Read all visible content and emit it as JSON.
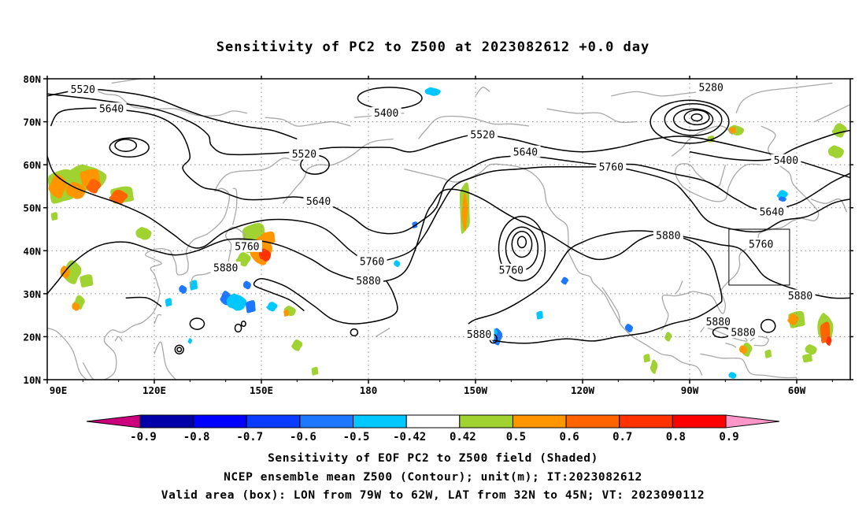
{
  "title": "Sensitivity of PC2 to Z500 at 2023082612 +0.0 day",
  "captions": {
    "line1": "Sensitivity of EOF PC2 to Z500 field (Shaded)",
    "line2": "NCEP ensemble mean Z500 (Contour); unit(m); IT:2023082612",
    "line3": "Valid area (box): LON from 79W to 62W, LAT from 32N to 45N; VT: 2023090112"
  },
  "map": {
    "lon_range_east": [
      90,
      315
    ],
    "lat_range": [
      10,
      80
    ],
    "lon_ticks": [
      {
        "lon": 90,
        "label": "90E"
      },
      {
        "lon": 120,
        "label": "120E"
      },
      {
        "lon": 150,
        "label": "150E"
      },
      {
        "lon": 180,
        "label": "180"
      },
      {
        "lon": 210,
        "label": "150W"
      },
      {
        "lon": 240,
        "label": "120W"
      },
      {
        "lon": 270,
        "label": "90W"
      },
      {
        "lon": 300,
        "label": "60W"
      }
    ],
    "lat_ticks": [
      {
        "lat": 80,
        "label": "80N"
      },
      {
        "lat": 70,
        "label": "70N"
      },
      {
        "lat": 60,
        "label": "60N"
      },
      {
        "lat": 50,
        "label": "50N"
      },
      {
        "lat": 40,
        "label": "40N"
      },
      {
        "lat": 30,
        "label": "30N"
      },
      {
        "lat": 20,
        "label": "20N"
      },
      {
        "lat": 10,
        "label": "10N"
      }
    ],
    "grid": "dotted",
    "valid_box": {
      "lon_w": 281,
      "lon_e": 298,
      "lat_s": 32,
      "lat_n": 45
    },
    "contour_labels": [
      {
        "text": "5520",
        "lon": 100,
        "lat": 77.5
      },
      {
        "text": "5640",
        "lon": 108,
        "lat": 73
      },
      {
        "text": "5520",
        "lon": 162,
        "lat": 62.5
      },
      {
        "text": "5640",
        "lon": 166,
        "lat": 51.5
      },
      {
        "text": "5400",
        "lon": 185,
        "lat": 72
      },
      {
        "text": "5520",
        "lon": 212,
        "lat": 67
      },
      {
        "text": "5640",
        "lon": 224,
        "lat": 63
      },
      {
        "text": "5760",
        "lon": 146,
        "lat": 41
      },
      {
        "text": "5880",
        "lon": 140,
        "lat": 36
      },
      {
        "text": "5760",
        "lon": 181,
        "lat": 37.5
      },
      {
        "text": "5880",
        "lon": 180,
        "lat": 33
      },
      {
        "text": "5760",
        "lon": 220,
        "lat": 35.5
      },
      {
        "text": "5760",
        "lon": 248,
        "lat": 59.5
      },
      {
        "text": "5880",
        "lon": 264,
        "lat": 43.5
      },
      {
        "text": "5280",
        "lon": 276,
        "lat": 78
      },
      {
        "text": "5400",
        "lon": 297,
        "lat": 61
      },
      {
        "text": "5640",
        "lon": 293,
        "lat": 49
      },
      {
        "text": "5760",
        "lon": 290,
        "lat": 41.5
      },
      {
        "text": "5880",
        "lon": 301,
        "lat": 29.5
      },
      {
        "text": "5880",
        "lon": 278,
        "lat": 23.5
      },
      {
        "text": "5880",
        "lon": 285,
        "lat": 21
      },
      {
        "text": "5880",
        "lon": 211,
        "lat": 20.5
      }
    ]
  },
  "colorbar": {
    "labels": [
      "-0.9",
      "-0.8",
      "-0.7",
      "-0.6",
      "-0.5",
      "-0.42",
      "0.42",
      "0.5",
      "0.6",
      "0.7",
      "0.8",
      "0.9"
    ],
    "colors": [
      "#cc007f",
      "#0000a8",
      "#0000ff",
      "#0a3cff",
      "#1e78ff",
      "#00c8ff",
      "#ffffff",
      "#a0d232",
      "#ff9600",
      "#ff6400",
      "#ff3200",
      "#ff0000",
      "#ff96c8"
    ]
  }
}
